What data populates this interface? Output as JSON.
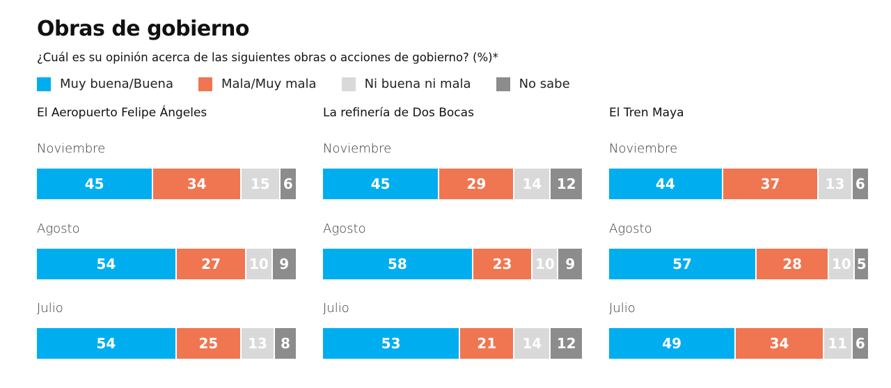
{
  "title": "Obras de gobierno",
  "subtitle": "¿Cuál es su opinión acerca de las siguientes obras o acciones de gobierno? (%)*",
  "colors": {
    "muy_buena_buena": "#00AEEF",
    "mala_muy_mala": "#EF7651",
    "ni_buena_ni_mala": "#D9D9D9",
    "no_sabe": "#8C8C8C"
  },
  "legend": [
    {
      "label": "Muy buena/Buena",
      "color": "#00AEEF"
    },
    {
      "label": "Mala/Muy mala",
      "color": "#EF7651"
    },
    {
      "label": "Ni buena ni mala",
      "color": "#D9D9D9"
    },
    {
      "label": "No sabe",
      "color": "#8C8C8C"
    }
  ],
  "chart_data": [
    {
      "type": "bar",
      "stacked": true,
      "orientation": "horizontal",
      "title": "El Aeropuerto Felipe Ángeles",
      "categories": [
        "Noviembre",
        "Agosto",
        "Julio"
      ],
      "series": [
        {
          "name": "Muy buena/Buena",
          "values": [
            45,
            54,
            54
          ]
        },
        {
          "name": "Mala/Muy mala",
          "values": [
            34,
            27,
            25
          ]
        },
        {
          "name": "Ni buena ni mala",
          "values": [
            15,
            10,
            13
          ]
        },
        {
          "name": "No sabe",
          "values": [
            6,
            9,
            8
          ]
        }
      ]
    },
    {
      "type": "bar",
      "stacked": true,
      "orientation": "horizontal",
      "title": "La refinería de Dos Bocas",
      "categories": [
        "Noviembre",
        "Agosto",
        "Julio"
      ],
      "series": [
        {
          "name": "Muy buena/Buena",
          "values": [
            45,
            58,
            53
          ]
        },
        {
          "name": "Mala/Muy mala",
          "values": [
            29,
            23,
            21
          ]
        },
        {
          "name": "Ni buena ni mala",
          "values": [
            14,
            10,
            14
          ]
        },
        {
          "name": "No sabe",
          "values": [
            12,
            9,
            12
          ]
        }
      ]
    },
    {
      "type": "bar",
      "stacked": true,
      "orientation": "horizontal",
      "title": "El Tren Maya",
      "categories": [
        "Noviembre",
        "Agosto",
        "Julio"
      ],
      "series": [
        {
          "name": "Muy buena/Buena",
          "values": [
            44,
            57,
            49
          ]
        },
        {
          "name": "Mala/Muy mala",
          "values": [
            37,
            28,
            34
          ]
        },
        {
          "name": "Ni buena ni mala",
          "values": [
            13,
            10,
            11
          ]
        },
        {
          "name": "No sabe",
          "values": [
            6,
            5,
            6
          ]
        }
      ]
    }
  ]
}
